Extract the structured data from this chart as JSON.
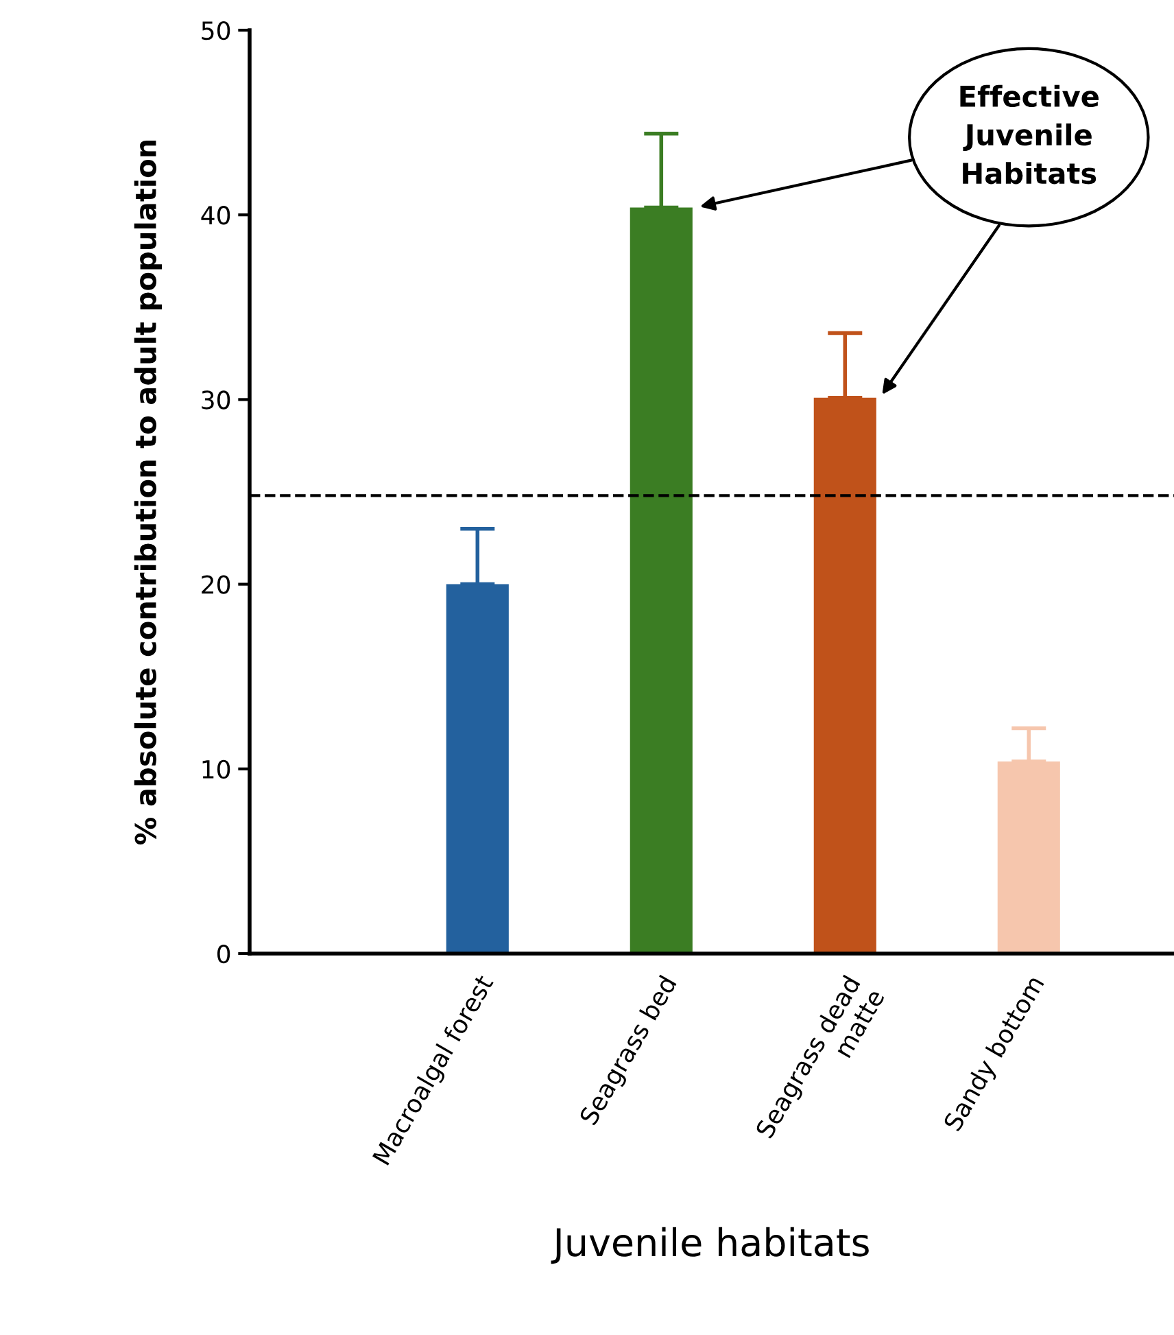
{
  "chart_data": {
    "type": "bar",
    "xlabel": "Juvenile habitats",
    "ylabel": "% absolute contribution to adult population",
    "categories": [
      "Macroalgal forest",
      "Seagrass bed",
      "Seagrass dead\nmatte",
      "Sandy bottom"
    ],
    "values": [
      20,
      40.4,
      30.1,
      10.4
    ],
    "colors": [
      "#23619e",
      "#3b7d23",
      "#c0521a",
      "#f6c6ad"
    ],
    "errors": [
      [
        20,
        23
      ],
      [
        40.4,
        44.4
      ],
      [
        30.1,
        33.6
      ],
      [
        10.4,
        12.2
      ]
    ],
    "ylim": [
      0,
      50
    ],
    "yticks": [
      0,
      10,
      20,
      30,
      40,
      50
    ],
    "grid": false,
    "ref_lines": [
      {
        "axis": "y",
        "value": 24.8,
        "line_style": "dashed",
        "color": "#000000"
      }
    ],
    "annotations": [
      "Effective\nJuvenile\nHabitats"
    ]
  }
}
